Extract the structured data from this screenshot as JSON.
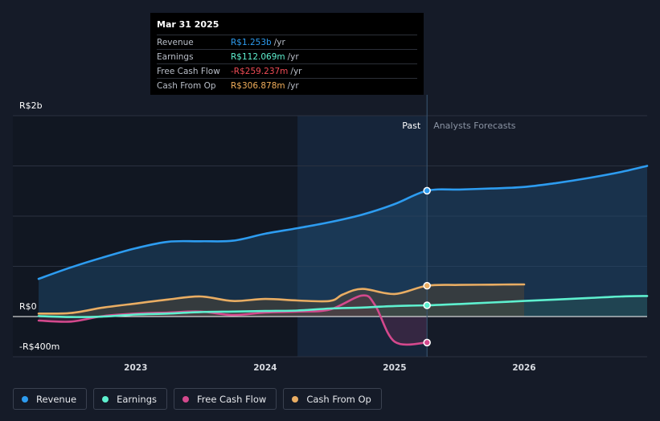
{
  "tooltip": {
    "date": "Mar 31 2025",
    "rows": [
      {
        "label": "Revenue",
        "value": "R$1.253b",
        "unit": "/yr",
        "color": "#2d9cf0"
      },
      {
        "label": "Earnings",
        "value": "R$112.069m",
        "unit": "/yr",
        "color": "#5ef0cf"
      },
      {
        "label": "Free Cash Flow",
        "value": "-R$259.237m",
        "unit": "/yr",
        "color": "#ef4b55"
      },
      {
        "label": "Cash From Op",
        "value": "R$306.878m",
        "unit": "/yr",
        "color": "#f0ad5a"
      }
    ]
  },
  "legend": [
    {
      "label": "Revenue",
      "color": "#2d9cf0"
    },
    {
      "label": "Earnings",
      "color": "#5ef0cf"
    },
    {
      "label": "Free Cash Flow",
      "color": "#d4498d"
    },
    {
      "label": "Cash From Op",
      "color": "#e9ad63"
    }
  ],
  "chart_data": {
    "type": "line",
    "title": "",
    "ylabel": "",
    "ylim": [
      -400,
      2000
    ],
    "xlim": [
      2022.25,
      2026.95
    ],
    "y_labels": [
      {
        "value": 2000,
        "text": "R$2b"
      },
      {
        "value": 0,
        "text": "R$0"
      },
      {
        "value": -400,
        "text": "-R$400m"
      }
    ],
    "x_ticks": [
      {
        "value": 2023.0,
        "text": "2023"
      },
      {
        "value": 2024.0,
        "text": "2024"
      },
      {
        "value": 2025.0,
        "text": "2025"
      },
      {
        "value": 2026.0,
        "text": "2026"
      }
    ],
    "past_label": "Past",
    "forecast_label": "Analysts Forecasts",
    "highlight_start": 2024.25,
    "divider_x": 2025.25,
    "series": [
      {
        "name": "Revenue",
        "color": "#2d9cf0",
        "x": [
          2022.25,
          2022.5,
          2022.75,
          2023.0,
          2023.25,
          2023.5,
          2023.75,
          2024.0,
          2024.25,
          2024.5,
          2024.75,
          2025.0,
          2025.25,
          2025.5,
          2025.75,
          2026.0,
          2026.25,
          2026.5,
          2026.75,
          2026.95
        ],
        "values": [
          375,
          490,
          590,
          680,
          745,
          750,
          755,
          825,
          880,
          940,
          1015,
          1120,
          1253,
          1265,
          1275,
          1290,
          1330,
          1380,
          1440,
          1500
        ],
        "marker_x": 2025.25,
        "marker_y": 1253
      },
      {
        "name": "Earnings",
        "color": "#5ef0cf",
        "x": [
          2022.25,
          2022.5,
          2022.75,
          2023.0,
          2023.25,
          2023.5,
          2023.75,
          2024.0,
          2024.25,
          2024.5,
          2024.75,
          2025.0,
          2025.25,
          2025.5,
          2025.75,
          2026.0,
          2026.25,
          2026.5,
          2026.75,
          2026.95
        ],
        "values": [
          5,
          -5,
          0,
          20,
          30,
          45,
          50,
          55,
          60,
          80,
          90,
          105,
          112,
          125,
          140,
          155,
          170,
          185,
          200,
          205
        ],
        "marker_x": 2025.25,
        "marker_y": 112
      },
      {
        "name": "Free Cash Flow",
        "color": "#d4498d",
        "x": [
          2022.25,
          2022.5,
          2022.75,
          2023.0,
          2023.25,
          2023.5,
          2023.75,
          2024.0,
          2024.25,
          2024.5,
          2024.75,
          2024.85,
          2025.0,
          2025.25
        ],
        "values": [
          -40,
          -50,
          5,
          30,
          40,
          50,
          15,
          40,
          50,
          70,
          210,
          110,
          -250,
          -259
        ],
        "marker_x": 2025.25,
        "marker_y": -259
      },
      {
        "name": "Cash From Op",
        "color": "#e9ad63",
        "x": [
          2022.25,
          2022.5,
          2022.75,
          2023.0,
          2023.25,
          2023.5,
          2023.75,
          2024.0,
          2024.25,
          2024.5,
          2024.6,
          2024.75,
          2025.0,
          2025.25,
          2025.5,
          2025.75,
          2026.0
        ],
        "values": [
          30,
          35,
          90,
          130,
          170,
          200,
          155,
          175,
          160,
          155,
          220,
          275,
          225,
          307,
          315,
          318,
          320
        ],
        "marker_x": 2025.25,
        "marker_y": 307
      }
    ]
  }
}
